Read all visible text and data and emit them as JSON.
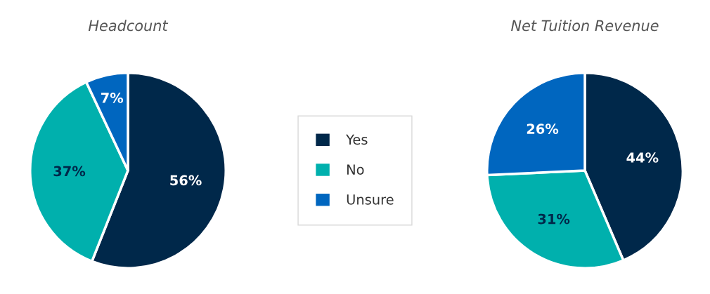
{
  "chart_data": [
    {
      "type": "pie",
      "title": "Headcount",
      "categories": [
        "Yes",
        "No",
        "Unsure"
      ],
      "values": [
        56,
        37,
        7
      ],
      "colors": [
        "#00284a",
        "#00b0ad",
        "#0066bf"
      ],
      "value_labels": [
        "56%",
        "37%",
        "7%"
      ],
      "legend": "right"
    },
    {
      "type": "pie",
      "title": "Net Tuition Revenue",
      "values": [
        44,
        31,
        26
      ],
      "colors": [
        "#00284a",
        "#00b0ad",
        "#0066bf"
      ],
      "value_labels": [
        "44%",
        "31%",
        "26%"
      ]
    }
  ]
}
